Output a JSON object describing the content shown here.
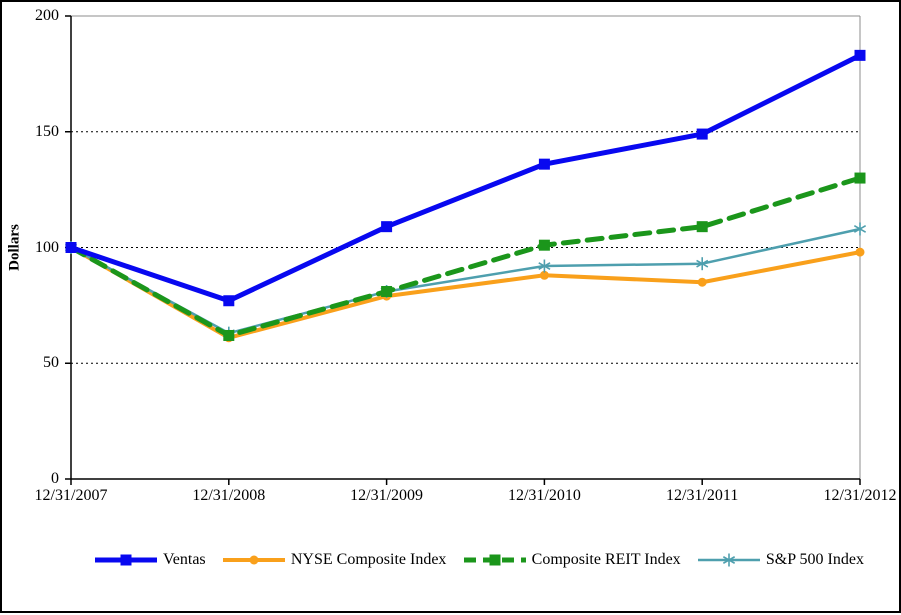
{
  "chart_data": {
    "type": "line",
    "title": "",
    "xlabel": "",
    "ylabel": "Dollars",
    "categories": [
      "12/31/2007",
      "12/31/2008",
      "12/31/2009",
      "12/31/2010",
      "12/31/2011",
      "12/31/2012"
    ],
    "series": [
      {
        "name": "Ventas",
        "values": [
          100,
          77,
          109,
          136,
          149,
          183
        ],
        "color": "#0808F0",
        "marker": "square",
        "line": "solid",
        "width": 5
      },
      {
        "name": "NYSE Composite Index",
        "values": [
          100,
          61,
          79,
          88,
          85,
          98
        ],
        "color": "#F9A01B",
        "marker": "circle",
        "line": "solid",
        "width": 4
      },
      {
        "name": "Composite REIT Index",
        "values": [
          100,
          62,
          81,
          101,
          109,
          130
        ],
        "color": "#1B961B",
        "marker": "square",
        "line": "dashed",
        "width": 5
      },
      {
        "name": "S&P 500 Index",
        "values": [
          100,
          63,
          81,
          92,
          93,
          108
        ],
        "color": "#4E9FAE",
        "marker": "asterisk",
        "line": "solid",
        "width": 2.5
      }
    ],
    "ylim": [
      0,
      200
    ],
    "yticks": [
      0,
      50,
      100,
      150,
      200
    ],
    "grid": "horizontal-dashed",
    "legend_position": "bottom",
    "axis_color": "#000000",
    "plot_border_color": "#8C8C8C",
    "gridline_color": "#000000"
  }
}
